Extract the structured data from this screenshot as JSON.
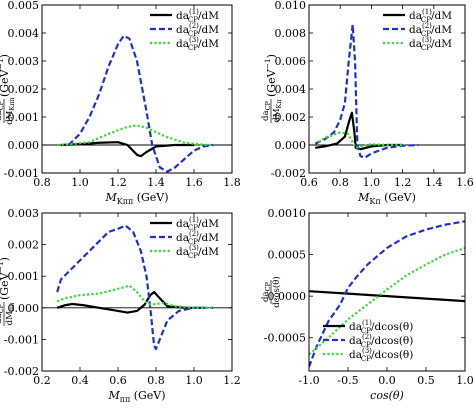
{
  "colors": {
    "series1": "#000000",
    "series2": "#1f2fd6",
    "series3": "#2ee02e",
    "axis": "#000000"
  },
  "chart_data": [
    {
      "type": "line",
      "xlabel_main": "M",
      "xlabel_sub": "Kππ",
      "xlabel_unit": " (GeV)",
      "ylabel_frac_num": "da",
      "ylabel_frac_num_sub": "CP",
      "ylabel_frac_den": "dM",
      "ylabel_frac_den_sub": "Kππ",
      "ylabel_unit": " (GeV",
      "ylabel_unit_exp": "−1",
      "ylabel_unit_close": ")",
      "xlim": [
        0.8,
        1.8
      ],
      "ylim": [
        -0.001,
        0.005
      ],
      "xticks": [
        0.8,
        1.0,
        1.2,
        1.4,
        1.6,
        1.8
      ],
      "xtick_labels": [
        "0.8",
        "1.0",
        "1.2",
        "1.4",
        "1.6",
        "1.8"
      ],
      "yticks": [
        -0.001,
        0.0,
        0.001,
        0.002,
        0.003,
        0.004,
        0.005
      ],
      "ytick_labels": [
        "-0.001",
        "0.000",
        "0.001",
        "0.002",
        "0.003",
        "0.004",
        "0.005"
      ],
      "zero_line": true,
      "legend_position": "top-right",
      "series": [
        {
          "name": "da",
          "name_sup": "(1)",
          "name_sub": "CP",
          "name_tail": "/dM",
          "style": "solid",
          "points": [
            [
              0.9,
              0
            ],
            [
              1.0,
              3e-05
            ],
            [
              1.1,
              8e-05
            ],
            [
              1.2,
              0.0001
            ],
            [
              1.25,
              0.0
            ],
            [
              1.3,
              -0.00035
            ],
            [
              1.32,
              -0.0004
            ],
            [
              1.35,
              -0.00025
            ],
            [
              1.4,
              -5e-05
            ],
            [
              1.5,
              0
            ],
            [
              1.6,
              0
            ]
          ]
        },
        {
          "name": "da",
          "name_sup": "(2)",
          "name_sub": "CP",
          "name_tail": "/dM",
          "style": "dashed",
          "points": [
            [
              0.94,
              0
            ],
            [
              1.0,
              0.0004
            ],
            [
              1.05,
              0.001
            ],
            [
              1.1,
              0.0018
            ],
            [
              1.15,
              0.0028
            ],
            [
              1.2,
              0.0036
            ],
            [
              1.23,
              0.0039
            ],
            [
              1.26,
              0.0038
            ],
            [
              1.3,
              0.003
            ],
            [
              1.35,
              0.0012
            ],
            [
              1.38,
              0.0
            ],
            [
              1.42,
              -0.0008
            ],
            [
              1.46,
              -0.00095
            ],
            [
              1.5,
              -0.0008
            ],
            [
              1.55,
              -0.0005
            ],
            [
              1.6,
              -0.0002
            ],
            [
              1.65,
              -5e-05
            ],
            [
              1.7,
              0
            ]
          ]
        },
        {
          "name": "da",
          "name_sup": "(3)",
          "name_sub": "CP",
          "name_tail": "/dM",
          "style": "dotted",
          "points": [
            [
              0.88,
              0
            ],
            [
              0.95,
              3e-05
            ],
            [
              1.05,
              0.0001
            ],
            [
              1.15,
              0.0004
            ],
            [
              1.25,
              0.00065
            ],
            [
              1.3,
              0.0007
            ],
            [
              1.35,
              0.00062
            ],
            [
              1.45,
              0.0003
            ],
            [
              1.55,
              8e-05
            ],
            [
              1.65,
              1e-05
            ],
            [
              1.7,
              0
            ]
          ]
        }
      ]
    },
    {
      "type": "line",
      "xlabel_main": "M",
      "xlabel_sub": "Kπ",
      "xlabel_unit": " (GeV)",
      "ylabel_frac_num": "da",
      "ylabel_frac_num_sub": "CP",
      "ylabel_frac_den": "dM",
      "ylabel_frac_den_sub": "Kπ",
      "ylabel_unit": " (GeV",
      "ylabel_unit_exp": "−1",
      "ylabel_unit_close": ")",
      "xlim": [
        0.6,
        1.6
      ],
      "ylim": [
        -0.002,
        0.01
      ],
      "xticks": [
        0.6,
        0.8,
        1.0,
        1.2,
        1.4,
        1.6
      ],
      "xtick_labels": [
        "0.6",
        "0.8",
        "1.0",
        "1.2",
        "1.4",
        "1.6"
      ],
      "yticks": [
        -0.002,
        0.0,
        0.002,
        0.004,
        0.006,
        0.008,
        0.01
      ],
      "ytick_labels": [
        "-0.002",
        "0.000",
        "0.002",
        "0.004",
        "0.006",
        "0.008",
        "0.010"
      ],
      "zero_line": true,
      "legend_position": "top-right",
      "series": [
        {
          "name": "da",
          "name_sup": "(1)",
          "name_sub": "CP",
          "name_tail": "/dM",
          "style": "solid",
          "points": [
            [
              0.64,
              -0.0002
            ],
            [
              0.7,
              -0.0001
            ],
            [
              0.78,
              0.0001
            ],
            [
              0.83,
              0.0006
            ],
            [
              0.86,
              0.0018
            ],
            [
              0.875,
              0.0023
            ],
            [
              0.89,
              0.001
            ],
            [
              0.9,
              -0.0002
            ],
            [
              0.93,
              -0.0003
            ],
            [
              1.0,
              -0.0001
            ],
            [
              1.1,
              0
            ],
            [
              1.2,
              0
            ]
          ]
        },
        {
          "name": "da",
          "name_sup": "(2)",
          "name_sub": "CP",
          "name_tail": "/dM",
          "style": "dashed",
          "points": [
            [
              0.64,
              0.0001
            ],
            [
              0.7,
              0.0004
            ],
            [
              0.76,
              0.0009
            ],
            [
              0.8,
              0.0018
            ],
            [
              0.83,
              0.003
            ],
            [
              0.855,
              0.006
            ],
            [
              0.88,
              0.0086
            ],
            [
              0.895,
              0.006
            ],
            [
              0.91,
              0.0
            ],
            [
              0.93,
              -0.0008
            ],
            [
              0.96,
              -0.0009
            ],
            [
              1.0,
              -0.0006
            ],
            [
              1.1,
              -0.0002
            ],
            [
              1.2,
              -5e-05
            ],
            [
              1.3,
              0
            ]
          ]
        },
        {
          "name": "da",
          "name_sup": "(3)",
          "name_sub": "CP",
          "name_tail": "/dM",
          "style": "dotted",
          "points": [
            [
              0.66,
              0.0002
            ],
            [
              0.7,
              0.0005
            ],
            [
              0.75,
              0.0007
            ],
            [
              0.8,
              0.0009
            ],
            [
              0.85,
              0.0008
            ],
            [
              0.88,
              0.0002
            ],
            [
              0.9,
              -0.0002
            ],
            [
              0.93,
              -0.0001
            ],
            [
              1.0,
              5e-05
            ],
            [
              1.1,
              0
            ],
            [
              1.2,
              0
            ]
          ]
        }
      ]
    },
    {
      "type": "line",
      "xlabel_main": "M",
      "xlabel_sub": "ππ",
      "xlabel_unit": " (GeV)",
      "ylabel_frac_num": "da",
      "ylabel_frac_num_sub": "CP",
      "ylabel_frac_den": "dM",
      "ylabel_frac_den_sub": "ππ",
      "ylabel_unit": " (GeV",
      "ylabel_unit_exp": "−1",
      "ylabel_unit_close": ")",
      "xlim": [
        0.2,
        1.2
      ],
      "ylim": [
        -0.002,
        0.003
      ],
      "xticks": [
        0.2,
        0.4,
        0.6,
        0.8,
        1.0,
        1.2
      ],
      "xtick_labels": [
        "0.2",
        "0.4",
        "0.6",
        "0.8",
        "1.0",
        "1.2"
      ],
      "yticks": [
        -0.002,
        -0.001,
        0.0,
        0.001,
        0.002,
        0.003
      ],
      "ytick_labels": [
        "-0.002",
        "-0.001",
        "0.000",
        "0.001",
        "0.002",
        "0.003"
      ],
      "zero_line": true,
      "legend_position": "top-right",
      "series": [
        {
          "name": "da",
          "name_sup": "(1)",
          "name_sub": "CP",
          "name_tail": "/dM",
          "style": "solid",
          "points": [
            [
              0.28,
              0
            ],
            [
              0.32,
              8e-05
            ],
            [
              0.36,
              0.00012
            ],
            [
              0.42,
              8e-05
            ],
            [
              0.5,
              0
            ],
            [
              0.6,
              -0.0001
            ],
            [
              0.65,
              -0.00015
            ],
            [
              0.7,
              -0.0001
            ],
            [
              0.74,
              0.0001
            ],
            [
              0.77,
              0.0004
            ],
            [
              0.79,
              0.0005
            ],
            [
              0.82,
              0.0003
            ],
            [
              0.86,
              5e-05
            ],
            [
              0.95,
              0
            ],
            [
              1.05,
              0
            ]
          ]
        },
        {
          "name": "da",
          "name_sup": "(2)",
          "name_sub": "CP",
          "name_tail": "/dM",
          "style": "dashed",
          "points": [
            [
              0.28,
              0.0005
            ],
            [
              0.3,
              0.0009
            ],
            [
              0.35,
              0.0012
            ],
            [
              0.4,
              0.0015
            ],
            [
              0.45,
              0.0018
            ],
            [
              0.5,
              0.0021
            ],
            [
              0.55,
              0.0024
            ],
            [
              0.6,
              0.0025
            ],
            [
              0.64,
              0.0026
            ],
            [
              0.68,
              0.0024
            ],
            [
              0.72,
              0.0018
            ],
            [
              0.75,
              0.001
            ],
            [
              0.77,
              0.0
            ],
            [
              0.79,
              -0.0012
            ],
            [
              0.8,
              -0.0013
            ],
            [
              0.82,
              -0.001
            ],
            [
              0.86,
              -0.0004
            ],
            [
              0.92,
              -0.0001
            ],
            [
              1.0,
              0
            ],
            [
              1.1,
              0
            ]
          ]
        },
        {
          "name": "da",
          "name_sup": "(3)",
          "name_sub": "CP",
          "name_tail": "/dM",
          "style": "dotted",
          "points": [
            [
              0.28,
              0.0002
            ],
            [
              0.32,
              0.0003
            ],
            [
              0.4,
              0.0004
            ],
            [
              0.5,
              0.00045
            ],
            [
              0.6,
              0.0006
            ],
            [
              0.66,
              0.0007
            ],
            [
              0.7,
              0.0005
            ],
            [
              0.74,
              0.0002
            ],
            [
              0.77,
              0.0001
            ],
            [
              0.8,
              0.00012
            ],
            [
              0.84,
              0.00015
            ],
            [
              0.9,
              5e-05
            ],
            [
              1.0,
              0
            ],
            [
              1.1,
              0
            ]
          ]
        }
      ]
    },
    {
      "type": "line",
      "xlabel_main": "cos(θ)",
      "xlabel_sub": "",
      "xlabel_unit": "",
      "ylabel_frac_num": "da",
      "ylabel_frac_num_sub": "CP",
      "ylabel_frac_den": "dcos(θ)",
      "ylabel_frac_den_sub": "",
      "ylabel_unit": "",
      "ylabel_unit_exp": "",
      "ylabel_unit_close": "",
      "xlim": [
        -1.0,
        1.0
      ],
      "ylim": [
        -0.0009,
        0.001
      ],
      "xticks": [
        -1.0,
        -0.5,
        0.0,
        0.5,
        1.0
      ],
      "xtick_labels": [
        "-1.0",
        "-0.5",
        "0.0",
        "0.5",
        "1.0"
      ],
      "yticks": [
        -0.0005,
        0.0,
        0.0005,
        0.001
      ],
      "ytick_labels": [
        "-0.0005",
        "0.0000",
        "0.0005",
        "0.0010"
      ],
      "zero_line": false,
      "legend_position": "bottom-right",
      "series": [
        {
          "name": "da",
          "name_sup": "(1)",
          "name_sub": "CP",
          "name_tail": "/dcos(θ)",
          "style": "solid",
          "points": [
            [
              -1.0,
              6e-05
            ],
            [
              -0.5,
              3e-05
            ],
            [
              0.0,
              0.0
            ],
            [
              0.5,
              -3e-05
            ],
            [
              1.0,
              -6e-05
            ]
          ]
        },
        {
          "name": "da",
          "name_sup": "(2)",
          "name_sub": "CP",
          "name_tail": "/dcos(θ)",
          "style": "dashed",
          "points": [
            [
              -1.0,
              -0.00085
            ],
            [
              -0.9,
              -0.0006
            ],
            [
              -0.75,
              -0.0003
            ],
            [
              -0.6,
              -0.0001
            ],
            [
              -0.5,
              0.0001
            ],
            [
              -0.4,
              0.00022
            ],
            [
              -0.25,
              0.00038
            ],
            [
              -0.1,
              0.0005
            ],
            [
              0.0,
              0.00058
            ],
            [
              0.25,
              0.00072
            ],
            [
              0.5,
              0.0008
            ],
            [
              0.75,
              0.00086
            ],
            [
              1.0,
              0.0009
            ]
          ]
        },
        {
          "name": "da",
          "name_sup": "(3)",
          "name_sub": "CP",
          "name_tail": "/dcos(θ)",
          "style": "dotted",
          "points": [
            [
              -1.0,
              -0.0007
            ],
            [
              -0.75,
              -0.0005
            ],
            [
              -0.5,
              -0.00028
            ],
            [
              -0.25,
              -0.0001
            ],
            [
              0.0,
              8e-05
            ],
            [
              0.25,
              0.00025
            ],
            [
              0.5,
              0.00038
            ],
            [
              0.75,
              0.0005
            ],
            [
              1.0,
              0.00058
            ]
          ]
        }
      ]
    }
  ]
}
